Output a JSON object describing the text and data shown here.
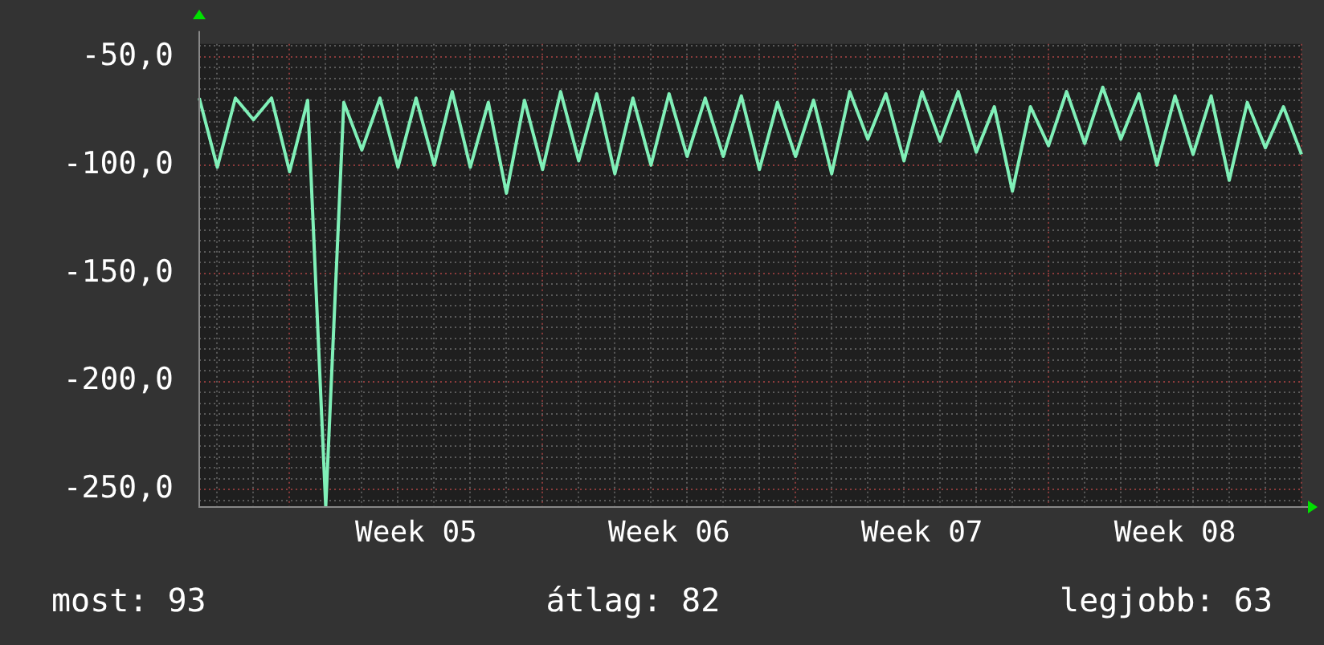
{
  "chart_data": {
    "type": "line",
    "categories": [
      null,
      null,
      null,
      null,
      null,
      null,
      null,
      null,
      null,
      null,
      null,
      null,
      "Week 05",
      null,
      null,
      null,
      null,
      null,
      null,
      null,
      null,
      null,
      null,
      null,
      null,
      null,
      "Week 06",
      null,
      null,
      null,
      null,
      null,
      null,
      null,
      null,
      null,
      null,
      null,
      null,
      null,
      "Week 07",
      null,
      null,
      null,
      null,
      null,
      null,
      null,
      null,
      null,
      null,
      null,
      null,
      null,
      "Week 08",
      null,
      null,
      null,
      null,
      null,
      null,
      null
    ],
    "series": [
      {
        "color": "#80f0b8",
        "values": [
          -69,
          -101,
          -69,
          -79,
          -69,
          -103,
          -70,
          -258,
          -71,
          -93,
          -69,
          -101,
          -69,
          -100,
          -66,
          -101,
          -71,
          -113,
          -70,
          -102,
          -66,
          -98,
          -67,
          -104,
          -69,
          -100,
          -67,
          -96,
          -69,
          -96,
          -68,
          -102,
          -71,
          -96,
          -70,
          -104,
          -66,
          -88,
          -67,
          -98,
          -66,
          -89,
          -66,
          -94,
          -73,
          -112,
          -73,
          -91,
          -66,
          -90,
          -64,
          -88,
          -67,
          -100,
          -68,
          -95,
          -68,
          -107,
          -71,
          -92,
          -73,
          -95
        ]
      }
    ],
    "ylim": [
      -258,
      -44
    ],
    "yticks": [
      {
        "value": -255,
        "label": null
      },
      {
        "value": -250,
        "label": "-250,0"
      },
      {
        "value": -245,
        "label": null
      },
      {
        "value": -240,
        "label": null
      },
      {
        "value": -235,
        "label": null
      },
      {
        "value": -230,
        "label": null
      },
      {
        "value": -225,
        "label": null
      },
      {
        "value": -220,
        "label": null
      },
      {
        "value": -215,
        "label": null
      },
      {
        "value": -210,
        "label": null
      },
      {
        "value": -205,
        "label": null
      },
      {
        "value": -200,
        "label": "-200,0"
      },
      {
        "value": -195,
        "label": null
      },
      {
        "value": -190,
        "label": null
      },
      {
        "value": -185,
        "label": null
      },
      {
        "value": -180,
        "label": null
      },
      {
        "value": -175,
        "label": null
      },
      {
        "value": -170,
        "label": null
      },
      {
        "value": -165,
        "label": null
      },
      {
        "value": -160,
        "label": null
      },
      {
        "value": -155,
        "label": null
      },
      {
        "value": -150,
        "label": "-150,0"
      },
      {
        "value": -145,
        "label": null
      },
      {
        "value": -140,
        "label": null
      },
      {
        "value": -135,
        "label": null
      },
      {
        "value": -130,
        "label": null
      },
      {
        "value": -125,
        "label": null
      },
      {
        "value": -120,
        "label": null
      },
      {
        "value": -115,
        "label": null
      },
      {
        "value": -110,
        "label": null
      },
      {
        "value": -105,
        "label": null
      },
      {
        "value": -100,
        "label": "-100,0"
      },
      {
        "value": -95,
        "label": null
      },
      {
        "value": -90,
        "label": null
      },
      {
        "value": -85,
        "label": null
      },
      {
        "value": -80,
        "label": null
      },
      {
        "value": -75,
        "label": null
      },
      {
        "value": -70,
        "label": null
      },
      {
        "value": -65,
        "label": null
      },
      {
        "value": -60,
        "label": null
      },
      {
        "value": -55,
        "label": null
      },
      {
        "value": -50,
        "label": "-50,0"
      },
      {
        "value": -45,
        "label": null
      }
    ],
    "grid": true,
    "legend": false,
    "marker": "none",
    "line_style": "solid",
    "annotations": [
      "most: 93",
      "átlag: 82",
      "legjobb: 63"
    ]
  }
}
